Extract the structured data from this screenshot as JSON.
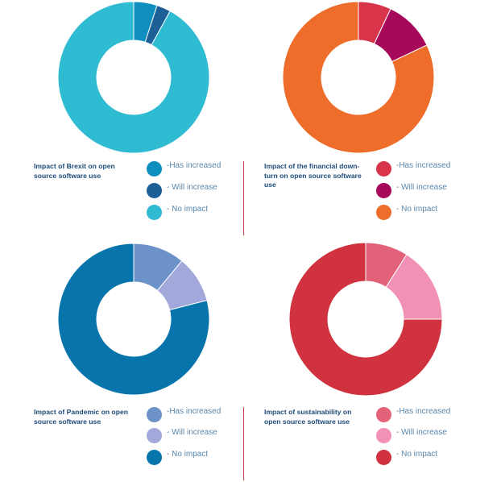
{
  "chart_data": [
    {
      "type": "pie",
      "donut": true,
      "caption": "Impact of Brexit on open\nsource software use",
      "categories": [
        "-Has increased",
        "- Will increase",
        "- No impact"
      ],
      "values": [
        5,
        3,
        92
      ],
      "colors": [
        "#0e8fc0",
        "#1d5f97",
        "#2fbbd2"
      ],
      "legend": "right of caption"
    },
    {
      "type": "pie",
      "donut": true,
      "caption": "Impact of the financial down-\nturn on open source software\nuse",
      "categories": [
        "-Has increased",
        "- Will increase",
        "- No impact"
      ],
      "values": [
        7,
        11,
        82
      ],
      "colors": [
        "#d8344a",
        "#a6085a",
        "#ee6d2b"
      ],
      "legend": "right of caption"
    },
    {
      "type": "pie",
      "donut": true,
      "caption": "Impact of Pandemic on open\nsource software use",
      "categories": [
        "-Has increased",
        "- Will increase",
        "- No impact"
      ],
      "values": [
        11,
        10,
        79
      ],
      "colors": [
        "#6c92c8",
        "#a3a8da",
        "#0775ac"
      ],
      "legend": "right of caption"
    },
    {
      "type": "pie",
      "donut": true,
      "caption": "Impact of sustainability on\nopen source software use",
      "categories": [
        "-Has increased",
        "- Will increase",
        "- No impact"
      ],
      "values": [
        9,
        16,
        75
      ],
      "colors": [
        "#e2627a",
        "#f191b5",
        "#d0333f"
      ],
      "legend": "right of caption"
    }
  ],
  "divider_color": "#c8464b",
  "caption_color": "#1d4b78",
  "legend_text_color": "#5a86a9"
}
